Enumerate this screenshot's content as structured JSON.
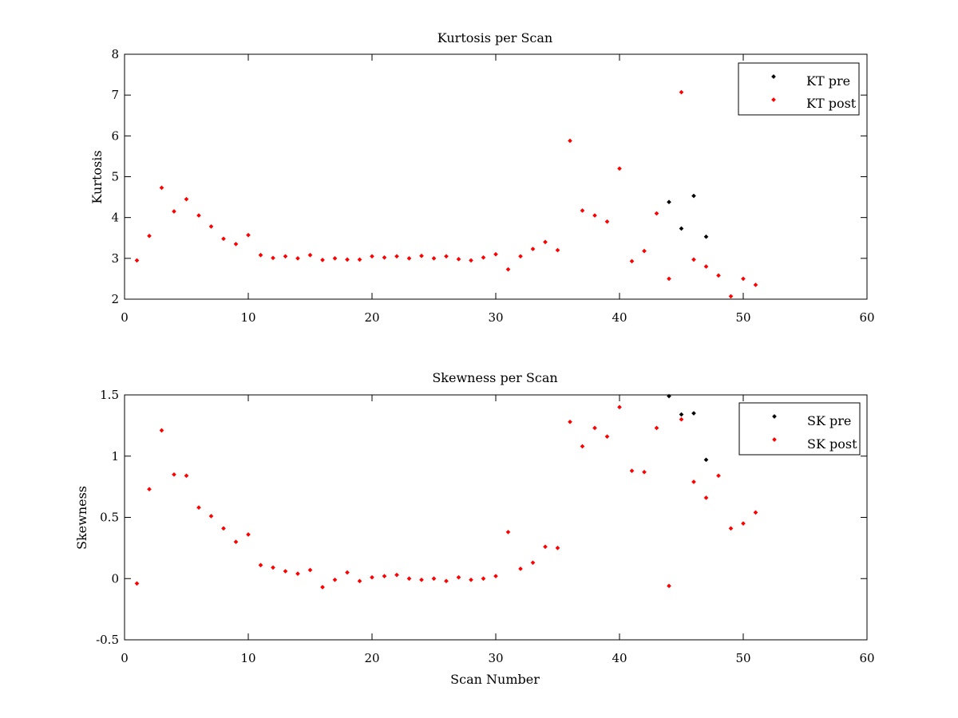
{
  "chart_data": [
    {
      "type": "scatter",
      "title": "Kurtosis per Scan",
      "xlabel": "",
      "ylabel": "Kurtosis",
      "xlim": [
        0,
        60
      ],
      "ylim": [
        2,
        8
      ],
      "xticks": [
        0,
        10,
        20,
        30,
        40,
        50,
        60
      ],
      "yticks": [
        2,
        3,
        4,
        5,
        6,
        7,
        8
      ],
      "grid": false,
      "legend_position": "top-right",
      "series": [
        {
          "name": "KT pre",
          "color": "#000000",
          "x": [
            44,
            45,
            46,
            47
          ],
          "y": [
            4.38,
            3.73,
            4.53,
            3.53
          ]
        },
        {
          "name": "KT post",
          "color": "#ff0000",
          "x": [
            1,
            2,
            3,
            4,
            5,
            6,
            7,
            8,
            9,
            10,
            11,
            12,
            13,
            14,
            15,
            16,
            17,
            18,
            19,
            20,
            21,
            22,
            23,
            24,
            25,
            26,
            27,
            28,
            29,
            30,
            31,
            32,
            33,
            34,
            35,
            36,
            37,
            38,
            39,
            40,
            41,
            42,
            43,
            44,
            45,
            46,
            47,
            48,
            49,
            50,
            51
          ],
          "y": [
            2.95,
            3.55,
            4.73,
            4.15,
            4.45,
            4.05,
            3.78,
            3.48,
            3.35,
            3.57,
            3.08,
            3.01,
            3.05,
            3.0,
            3.08,
            2.96,
            3.0,
            2.97,
            2.97,
            3.05,
            3.02,
            3.05,
            3.0,
            3.06,
            3.0,
            3.05,
            2.98,
            2.95,
            3.02,
            3.1,
            2.73,
            3.05,
            3.23,
            3.4,
            3.2,
            5.88,
            4.17,
            4.05,
            3.9,
            5.2,
            2.93,
            3.18,
            4.1,
            2.5,
            7.07,
            2.97,
            2.8,
            2.58,
            2.07,
            2.5,
            2.35
          ]
        }
      ]
    },
    {
      "type": "scatter",
      "title": "Skewness per Scan",
      "xlabel": "Scan Number",
      "ylabel": "Skewness",
      "xlim": [
        0,
        60
      ],
      "ylim": [
        -0.5,
        1.5
      ],
      "xticks": [
        0,
        10,
        20,
        30,
        40,
        50,
        60
      ],
      "yticks": [
        -0.5,
        0,
        0.5,
        1,
        1.5
      ],
      "ytick_labels": [
        "-0.5",
        "0",
        "0.5",
        "1",
        "1.5"
      ],
      "grid": false,
      "legend_position": "top-right",
      "series": [
        {
          "name": "SK pre",
          "color": "#000000",
          "x": [
            44,
            45,
            46,
            47
          ],
          "y": [
            1.49,
            1.34,
            1.35,
            0.97
          ]
        },
        {
          "name": "SK post",
          "color": "#ff0000",
          "x": [
            1,
            2,
            3,
            4,
            5,
            6,
            7,
            8,
            9,
            10,
            11,
            12,
            13,
            14,
            15,
            16,
            17,
            18,
            19,
            20,
            21,
            22,
            23,
            24,
            25,
            26,
            27,
            28,
            29,
            30,
            31,
            32,
            33,
            34,
            35,
            36,
            37,
            38,
            39,
            40,
            41,
            42,
            43,
            44,
            45,
            46,
            47,
            48,
            49,
            50,
            51
          ],
          "y": [
            -0.04,
            0.73,
            1.21,
            0.85,
            0.84,
            0.58,
            0.51,
            0.41,
            0.3,
            0.36,
            0.11,
            0.09,
            0.06,
            0.04,
            0.07,
            -0.07,
            -0.01,
            0.05,
            -0.02,
            0.01,
            0.02,
            0.03,
            0.0,
            -0.01,
            0.0,
            -0.02,
            0.01,
            -0.01,
            0.0,
            0.02,
            0.38,
            0.08,
            0.13,
            0.26,
            0.25,
            1.28,
            1.08,
            1.23,
            1.16,
            1.4,
            0.88,
            0.87,
            1.23,
            -0.06,
            1.3,
            0.79,
            0.66,
            0.84,
            0.41,
            0.45,
            0.54
          ]
        }
      ]
    }
  ]
}
